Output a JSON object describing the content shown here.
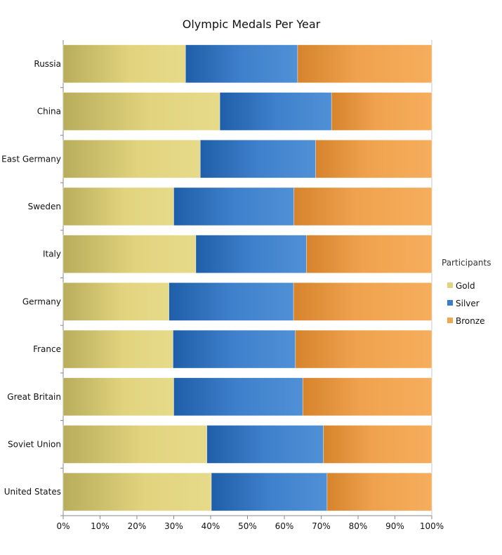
{
  "chart_data": {
    "type": "bar",
    "orientation": "horizontal",
    "stacked": "percent",
    "title": "Olympic Medals Per Year",
    "categories": [
      "Russia",
      "China",
      "East Germany",
      "Sweden",
      "Italy",
      "Germany",
      "France",
      "Great Britain",
      "Soviet Union",
      "United States"
    ],
    "series": [
      {
        "name": "Gold",
        "color": "#e2d47e",
        "values": [
          33.2,
          42.5,
          37.2,
          30.0,
          36.0,
          28.7,
          29.8,
          30.0,
          39.0,
          40.2
        ]
      },
      {
        "name": "Silver",
        "color": "#3a7ec8",
        "values": [
          30.4,
          30.3,
          31.3,
          32.6,
          30.0,
          33.8,
          33.2,
          35.0,
          31.6,
          31.4
        ]
      },
      {
        "name": "Bronze",
        "color": "#f2a650",
        "values": [
          36.4,
          27.2,
          31.5,
          37.4,
          34.0,
          37.5,
          37.0,
          35.0,
          29.4,
          28.4
        ]
      }
    ],
    "xaxis": {
      "ticks": [
        "0%",
        "10%",
        "20%",
        "30%",
        "40%",
        "50%",
        "60%",
        "70%",
        "80%",
        "90%",
        "100%"
      ],
      "xlim": [
        0,
        100
      ]
    },
    "legend": {
      "title": "Participants",
      "placement": "right"
    },
    "grid": false
  }
}
